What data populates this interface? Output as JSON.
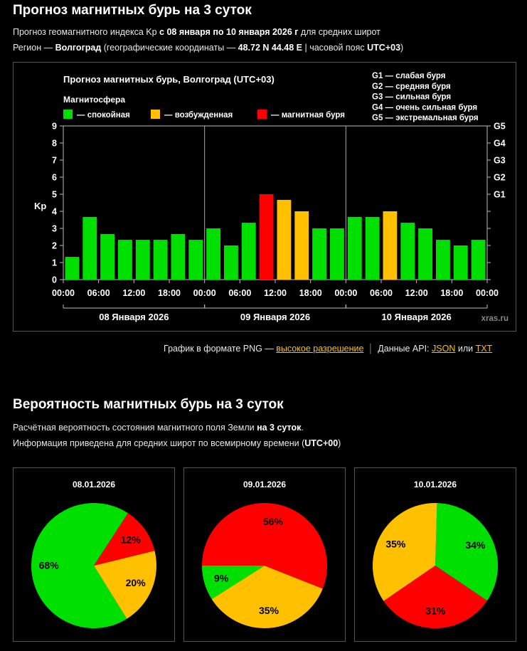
{
  "header": {
    "title": "Прогноз магнитных бурь на 3 суток",
    "line1_pre": "Прогноз геомагнитного индекса Kp ",
    "line1_bold": "с 08 января по 10 января 2026 г",
    "line1_post": " для средних широт",
    "line2_pre": "Регион — ",
    "line2_city": "Волгоград",
    "line2_mid": " (географические координаты — ",
    "line2_coords": "48.72 N 44.48 E",
    "line2_mid2": " | часовой пояс ",
    "line2_tz": "UTC+03",
    "line2_post": ")"
  },
  "chart_data": {
    "type": "bar",
    "title": "Прогноз магнитных бурь, Волгоград (UTC+03)",
    "legend_title": "Магнитосфера",
    "legend": [
      {
        "label": "— спокойная",
        "color": "#00e000"
      },
      {
        "label": "— возбужденная",
        "color": "#ffc000"
      },
      {
        "label": "— магнитная буря",
        "color": "#ff0000"
      }
    ],
    "storm_levels": [
      "G1 — слабая буря",
      "G2 — средняя буря",
      "G3 — сильная буря",
      "G4 — очень сильная буря",
      "G5 — экстремальная буря"
    ],
    "ylabel": "Kp",
    "ylim": [
      0,
      9
    ],
    "y_ticks": [
      "0",
      "1",
      "2",
      "3",
      "4",
      "5",
      "6",
      "7",
      "8",
      "9"
    ],
    "g_ticks": [
      {
        "label": "G1",
        "kp": 5
      },
      {
        "label": "G2",
        "kp": 6
      },
      {
        "label": "G3",
        "kp": 7
      },
      {
        "label": "G4",
        "kp": 8
      },
      {
        "label": "G5",
        "kp": 9
      }
    ],
    "x_ticks": [
      "00:00",
      "06:00",
      "12:00",
      "18:00",
      "00:00",
      "06:00",
      "12:00",
      "18:00",
      "00:00",
      "06:00",
      "12:00",
      "18:00",
      "00:00"
    ],
    "days": [
      "08 Января 2026",
      "09 Января 2026",
      "10 Января 2026"
    ],
    "values": [
      1.33,
      3.67,
      2.67,
      2.33,
      2.33,
      2.33,
      2.67,
      2.33,
      3.0,
      2.0,
      3.33,
      5.0,
      4.67,
      4.0,
      3.0,
      3.0,
      3.67,
      3.67,
      4.0,
      3.33,
      3.0,
      2.33,
      2.0,
      2.33
    ],
    "colors": [
      "#00e000",
      "#00e000",
      "#00e000",
      "#00e000",
      "#00e000",
      "#00e000",
      "#00e000",
      "#00e000",
      "#00e000",
      "#00e000",
      "#00e000",
      "#ff0000",
      "#ffc000",
      "#ffc000",
      "#00e000",
      "#00e000",
      "#00e000",
      "#00e000",
      "#ffc000",
      "#00e000",
      "#00e000",
      "#00e000",
      "#00e000",
      "#00e000"
    ],
    "watermark": "xras.ru",
    "grid": false
  },
  "links": {
    "png_pre": "График в формате PNG — ",
    "png_link": "высокое разрешение",
    "api_pre": "Данные API: ",
    "json": "JSON",
    "or": " или ",
    "txt": "TXT"
  },
  "probability": {
    "title": "Вероятность магнитных бурь на 3 суток",
    "line1_pre": "Расчётная вероятность состояния магнитного поля Земли ",
    "line1_bold": "на 3 суток",
    "line1_post": ".",
    "line2_pre": "Информация приведена для средних широт по всемирному времени (",
    "line2_bold": "UTC+00",
    "line2_post": ")"
  },
  "pies": [
    {
      "date": "08.01.2026",
      "slices": [
        {
          "label": "спокойная",
          "pct": 68,
          "color": "#00e000"
        },
        {
          "label": "возбужденная",
          "pct": 20,
          "color": "#ffc000"
        },
        {
          "label": "магнитная буря",
          "pct": 12,
          "color": "#ff0000"
        }
      ]
    },
    {
      "date": "09.01.2026",
      "slices": [
        {
          "label": "спокойная",
          "pct": 9,
          "color": "#00e000"
        },
        {
          "label": "возбужденная",
          "pct": 35,
          "color": "#ffc000"
        },
        {
          "label": "магнитная буря",
          "pct": 56,
          "color": "#ff0000"
        }
      ]
    },
    {
      "date": "10.01.2026",
      "slices": [
        {
          "label": "спокойная",
          "pct": 34,
          "color": "#00e000"
        },
        {
          "label": "возбужденная",
          "pct": 35,
          "color": "#ffc000"
        },
        {
          "label": "магнитная буря",
          "pct": 31,
          "color": "#ff0000"
        }
      ]
    }
  ]
}
